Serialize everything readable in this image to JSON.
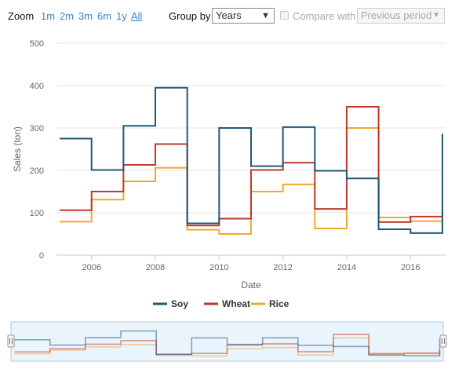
{
  "toolbar": {
    "zoom_label": "Zoom",
    "zoom_options": [
      "1m",
      "2m",
      "3m",
      "6m",
      "1y",
      "All"
    ],
    "zoom_selected": "All",
    "group_by_label": "Group by",
    "group_by_value": "Years",
    "compare_label": "Compare with",
    "compare_checked": false,
    "compare_value": "Previous period"
  },
  "chart_data": {
    "type": "line",
    "step": true,
    "xlabel": "Date",
    "ylabel": "Sales (ton)",
    "xlim": [
      2004.9,
      2017.1
    ],
    "ylim": [
      0,
      500
    ],
    "x_ticks": [
      2006,
      2008,
      2010,
      2012,
      2014,
      2016
    ],
    "y_ticks": [
      0,
      100,
      200,
      300,
      400,
      500
    ],
    "grid": "horizontal",
    "legend_position": "bottom",
    "x": [
      2005,
      2006,
      2007,
      2008,
      2009,
      2010,
      2011,
      2012,
      2013,
      2014,
      2015,
      2016,
      2017
    ],
    "series": [
      {
        "name": "Soy",
        "color": "#1f5a7a",
        "values": [
          275,
          201,
          305,
          395,
          75,
          300,
          210,
          302,
          199,
          181,
          61,
          52,
          286
        ]
      },
      {
        "name": "Wheat",
        "color": "#c0392b",
        "values": [
          106,
          150,
          213,
          262,
          70,
          86,
          201,
          218,
          109,
          350,
          78,
          91,
          123
        ]
      },
      {
        "name": "Rice",
        "color": "#f0a830",
        "values": [
          79,
          131,
          174,
          206,
          60,
          50,
          150,
          167,
          63,
          300,
          89,
          80,
          50
        ]
      }
    ],
    "navigator": true
  }
}
